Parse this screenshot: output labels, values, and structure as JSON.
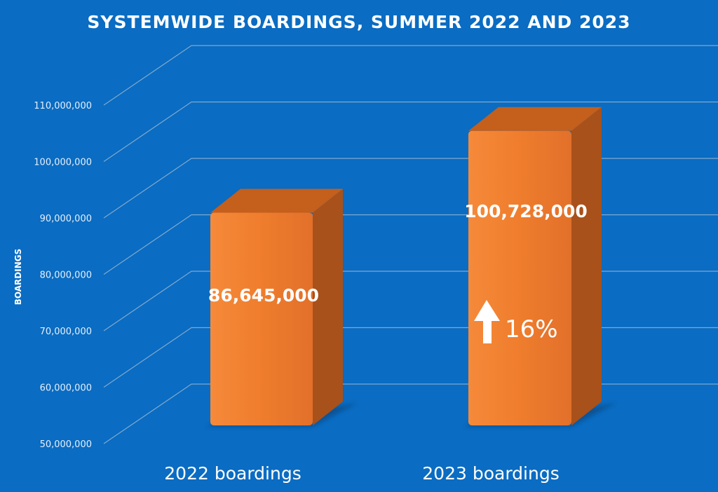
{
  "chart_data": {
    "type": "bar",
    "title": "SYSTEMWIDE BOARDINGS, SUMMER 2022 AND 2023",
    "ylabel": "BOARDINGS",
    "xlabel": "",
    "categories": [
      "2022 boardings",
      "2023 boardings"
    ],
    "values": [
      86645000,
      100728000
    ],
    "data_labels": [
      "86,645,000",
      "100,728,000"
    ],
    "ylim": [
      50000000,
      110000000
    ],
    "yticks": [
      50000000,
      60000000,
      70000000,
      80000000,
      90000000,
      100000000,
      110000000
    ],
    "ytick_labels": [
      "50,000,000",
      "60,000,000",
      "70,000,000",
      "80,000,000",
      "90,000,000",
      "100,000,000",
      "110,000,000"
    ],
    "annotation": {
      "text": "16%",
      "icon": "up-arrow-icon",
      "series_index": 1
    },
    "grid": true,
    "legend": "none",
    "colors": {
      "background": "#0a6cc2",
      "bar_front": "#ef7d2d",
      "bar_top": "#c45f1c",
      "bar_side": "#a8511a",
      "grid": "#7fa9cf"
    }
  }
}
